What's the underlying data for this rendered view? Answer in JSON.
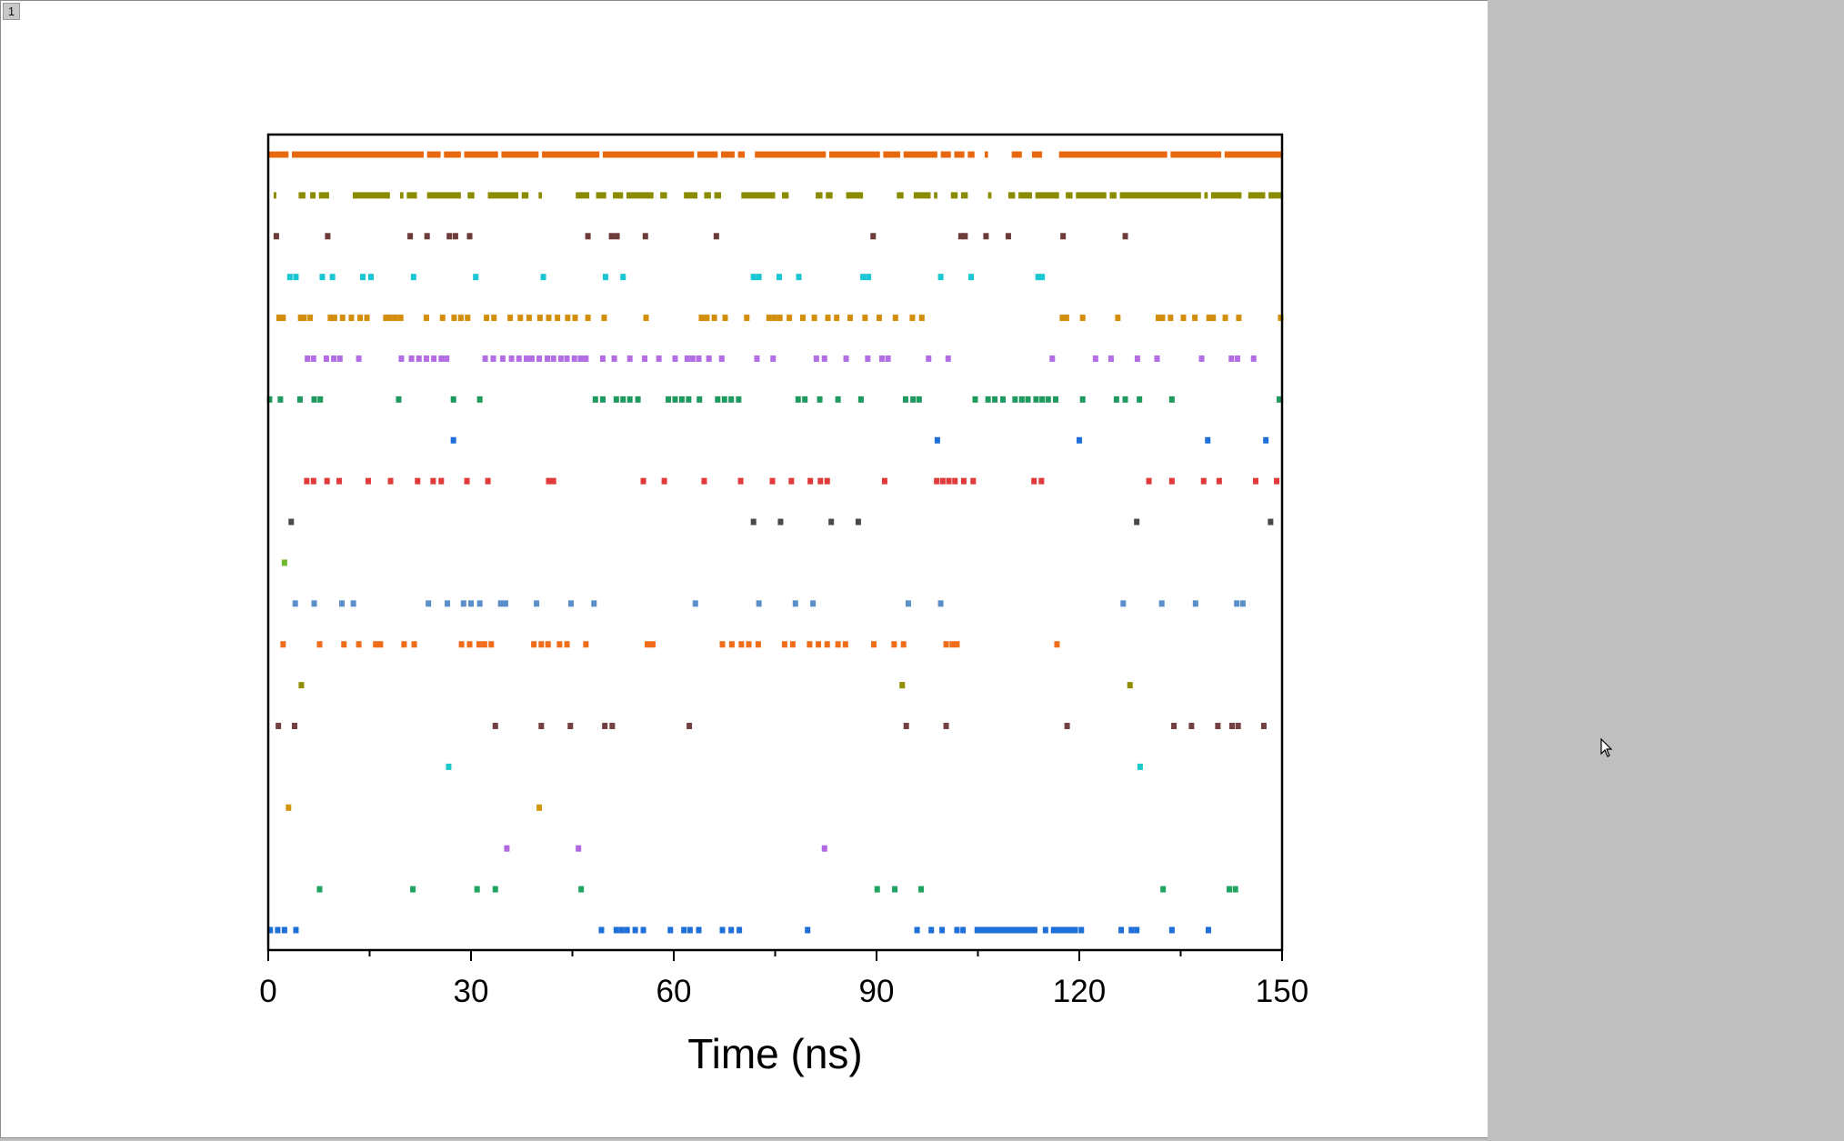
{
  "window": {
    "page_number": "1"
  },
  "chart_data": {
    "type": "scatter",
    "title": "",
    "xlabel": "Time (ns)",
    "ylabel": "",
    "xlim": [
      0,
      150
    ],
    "xticks": [
      0,
      30,
      60,
      90,
      120,
      150
    ],
    "xtick_labels": [
      "0",
      "30",
      "60",
      "90",
      "120",
      "150"
    ],
    "grid": false,
    "legend": "none",
    "series": [
      {
        "color": "#e8680f",
        "segments": [
          [
            0,
            3
          ],
          [
            3.5,
            23
          ],
          [
            23.5,
            25.5
          ],
          [
            26,
            28.5
          ],
          [
            29,
            34
          ],
          [
            34.5,
            40
          ],
          [
            40.5,
            49
          ],
          [
            49.5,
            63
          ],
          [
            63.5,
            66.5
          ],
          [
            67,
            69
          ],
          [
            69.5,
            70.5
          ],
          [
            72,
            82.5
          ],
          [
            83,
            90.5
          ],
          [
            91,
            93.5
          ],
          [
            94,
            99
          ],
          [
            99.5,
            101
          ],
          [
            101.5,
            103
          ],
          [
            103.5,
            104.5
          ],
          [
            106,
            106.5
          ],
          [
            110,
            111.5
          ],
          [
            113,
            114.5
          ],
          [
            117,
            133
          ],
          [
            133.5,
            141
          ],
          [
            141.5,
            150
          ]
        ]
      },
      {
        "color": "#8b8b00",
        "segments": [
          [
            0.8,
            1.2
          ],
          [
            4.5,
            5.5
          ],
          [
            6.2,
            7
          ],
          [
            7.5,
            9
          ],
          [
            12.5,
            18
          ],
          [
            19.5,
            20
          ],
          [
            20.5,
            22
          ],
          [
            23.5,
            28.5
          ],
          [
            29.5,
            30.5
          ],
          [
            32.5,
            37
          ],
          [
            37.5,
            38.5
          ],
          [
            40,
            40.5
          ],
          [
            45.5,
            47.5
          ],
          [
            48.5,
            50
          ],
          [
            51,
            52.5
          ],
          [
            53,
            57
          ],
          [
            58,
            59
          ],
          [
            61.5,
            63.5
          ],
          [
            64.5,
            65.5
          ],
          [
            66,
            67
          ],
          [
            70,
            75
          ],
          [
            76,
            77
          ],
          [
            81,
            82
          ],
          [
            82.5,
            83.5
          ],
          [
            85.5,
            88
          ],
          [
            93,
            94
          ],
          [
            95.5,
            98
          ],
          [
            98.5,
            99
          ],
          [
            101,
            102
          ],
          [
            102.5,
            103.5
          ],
          [
            106.5,
            107
          ],
          [
            109.5,
            110.5
          ],
          [
            111,
            113
          ],
          [
            113.5,
            117
          ],
          [
            118,
            119
          ],
          [
            119.5,
            124
          ],
          [
            124.5,
            125.5
          ],
          [
            126,
            138
          ],
          [
            138.5,
            139
          ],
          [
            139.5,
            144
          ],
          [
            145,
            147.5
          ],
          [
            148,
            150
          ]
        ]
      },
      {
        "color": "#6e3b3b",
        "points": [
          1.2,
          8.8,
          21,
          23.5,
          26.8,
          27.7,
          29.8,
          47.3,
          50.8,
          51.6,
          55.8,
          66.3,
          89.5,
          102.5,
          103.1,
          106.2,
          109.5,
          117.6,
          126.8
        ]
      },
      {
        "color": "#19c6d1",
        "points": [
          3.2,
          4.1,
          8,
          9.5,
          14,
          15.2,
          21.5,
          30.7,
          40.7,
          49.9,
          52.5,
          71.8,
          72.6,
          75.6,
          78.5,
          88,
          88.8,
          99.5,
          104,
          113.9,
          114.5
        ]
      },
      {
        "color": "#d28e0b",
        "points": [
          1.6,
          2.2,
          4.8,
          5.3,
          6.2,
          9.2,
          9.8,
          11,
          12.3,
          13.6,
          14.6,
          17.4,
          18,
          18.8,
          19.6,
          23.4,
          25.8,
          27.5,
          28.5,
          29.5,
          32.3,
          33.4,
          35.8,
          37.3,
          38.6,
          40.2,
          41.5,
          42.8,
          44.3,
          45.4,
          47.3,
          49.7,
          55.9,
          64.1,
          64.9,
          66,
          67.6,
          70.8,
          74.1,
          74.9,
          75.7,
          77.1,
          79.1,
          80.8,
          82.8,
          84.1,
          86.1,
          88.3,
          90.4,
          92.8,
          95.3,
          96.7,
          117.5,
          118.1,
          120.5,
          125.7,
          131.7,
          132.3,
          133.5,
          135.4,
          137.1,
          139.2,
          139.8,
          141.6,
          143.6,
          149.8
        ]
      },
      {
        "color": "#b36ee6",
        "points": [
          5.8,
          6.7,
          8.6,
          9.7,
          10.6,
          13.4,
          19.7,
          21.2,
          22.3,
          23.4,
          24.5,
          25.6,
          26.4,
          32.1,
          33.3,
          34.7,
          36,
          37.1,
          38.2,
          39,
          40.1,
          41.3,
          42.2,
          43.3,
          44.2,
          45.3,
          46.2,
          47,
          49.5,
          51.2,
          53.5,
          55.7,
          57.8,
          60.2,
          62,
          62.8,
          63.7,
          65.2,
          67.1,
          72.3,
          74.7,
          81.1,
          82.3,
          85.5,
          88.7,
          90.8,
          91.7,
          97.7,
          100.6,
          116,
          122.4,
          124.7,
          128.6,
          131.5,
          138.1,
          142.5,
          143.4,
          145.8
        ]
      },
      {
        "color": "#1e9a5e",
        "points": [
          0.2,
          1.8,
          4.7,
          6.8,
          7.7,
          19.3,
          27.4,
          31.3,
          48.4,
          49.5,
          51.5,
          52.5,
          53.5,
          54.7,
          59.2,
          60.2,
          61.2,
          62.2,
          63.8,
          66.5,
          67.5,
          68.5,
          69.6,
          78.4,
          79.4,
          81.6,
          84.3,
          87.7,
          94.3,
          95.4,
          96.3,
          104.6,
          106.5,
          107.5,
          108.7,
          110.5,
          111.5,
          112.4,
          113.6,
          114.5,
          115.4,
          116.5,
          120.5,
          125.5,
          126.8,
          128.9,
          133.7,
          149.6
        ]
      },
      {
        "color": "#1f6fd9",
        "points": [
          27.4,
          99,
          120,
          139,
          147.6
        ]
      },
      {
        "color": "#e03a3a",
        "points": [
          5.7,
          6.7,
          8.7,
          10.5,
          14.8,
          18.1,
          22.1,
          24.4,
          25.6,
          29.4,
          32.5,
          41.5,
          42.2,
          55.5,
          58.6,
          64.5,
          69.9,
          74.6,
          77.4,
          80.2,
          81.7,
          82.7,
          91.2,
          98.9,
          99.8,
          100.7,
          101.6,
          102.9,
          104.3,
          113.3,
          114.4,
          130.3,
          133.7,
          138.4,
          140.7,
          146.1,
          149.2
        ]
      },
      {
        "color": "#4a4a4a",
        "points": [
          3.4,
          71.8,
          75.8,
          83.3,
          87.3,
          128.5,
          148.3
        ]
      },
      {
        "color": "#6fb92d",
        "points": [
          2.4
        ]
      },
      {
        "color": "#5a8fc9",
        "points": [
          4,
          6.8,
          10.9,
          12.6,
          23.7,
          26.5,
          28.9,
          30,
          31.3,
          34.4,
          35.1,
          39.7,
          44.8,
          48.2,
          63.2,
          72.6,
          78,
          80.6,
          94.7,
          99.5,
          126.5,
          132.2,
          137.2,
          143.3,
          144.2
        ]
      },
      {
        "color": "#f06d1a",
        "points": [
          2.2,
          7.6,
          11.2,
          13.4,
          15.9,
          16.6,
          20.1,
          21.6,
          28.6,
          29.8,
          31.2,
          32,
          33,
          39.3,
          40.4,
          41.4,
          43.1,
          44.2,
          47,
          56.1,
          56.9,
          67.2,
          68.6,
          70,
          71.1,
          72.5,
          76.4,
          77.6,
          80.1,
          81.4,
          82.7,
          84.3,
          85.4,
          89.6,
          92.6,
          94,
          100.3,
          101.2,
          101.9,
          116.7
        ]
      },
      {
        "color": "#8e8e00",
        "points": [
          4.9,
          93.8,
          127.5
        ]
      },
      {
        "color": "#734141",
        "points": [
          1.5,
          3.9,
          33.6,
          40.4,
          44.7,
          49.8,
          50.9,
          62.3,
          94.4,
          100.3,
          118.2,
          134,
          136.6,
          140.5,
          142.6,
          143.5,
          147.3
        ]
      },
      {
        "color": "#1ac9c9",
        "points": [
          26.7,
          129
        ]
      },
      {
        "color": "#d4960c",
        "points": [
          3,
          40.1
        ]
      },
      {
        "color": "#b067e0",
        "points": [
          35.3,
          45.9,
          82.3
        ]
      },
      {
        "color": "#21a362",
        "points": [
          7.6,
          21.4,
          30.9,
          33.6,
          46.3,
          90.1,
          92.7,
          96.6,
          132.4,
          142.2,
          143.1
        ]
      },
      {
        "color": "#1f6fd9",
        "points": [
          0.3,
          1.4,
          2.4,
          4.1,
          49.3,
          51.5,
          52.3,
          53.1,
          54.3,
          55.5,
          59.5,
          61.5,
          62.4,
          63.7,
          67.2,
          68.5,
          69.7,
          79.8,
          96,
          98.1,
          99.7,
          101.9,
          102.8
        ],
        "segments": [
          [
            104.5,
            113.8
          ]
        ],
        "extra_points": [
          115,
          116.2,
          116.9,
          117.5,
          118.1,
          118.8,
          119.4,
          120.3,
          126.2,
          127.7,
          128.5,
          133.7,
          139.1
        ]
      }
    ]
  }
}
